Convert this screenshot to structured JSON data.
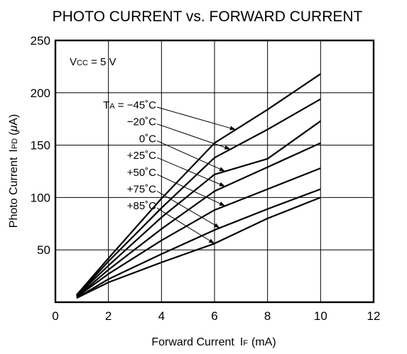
{
  "chart_data": {
    "type": "line",
    "title": "PHOTO CURRENT vs. FORWARD CURRENT",
    "xlabel": "Forward Current",
    "xlabel_symbol": "I",
    "xlabel_sub": "F",
    "xlabel_unit": "(mA)",
    "ylabel": "Photo Current",
    "ylabel_symbol": "I",
    "ylabel_sub": "PD",
    "ylabel_unit_open": "(",
    "ylabel_unit_mu": "μ",
    "ylabel_unit_rest": "A)",
    "xlim": [
      0,
      12
    ],
    "ylim": [
      0,
      250
    ],
    "xticks": [
      0,
      2,
      4,
      6,
      8,
      10,
      12
    ],
    "yticks": [
      50,
      100,
      150,
      200,
      250
    ],
    "xtick_labels": [
      "0",
      "2",
      "4",
      "6",
      "8",
      "10",
      "12"
    ],
    "ytick_labels": [
      "50",
      "100",
      "150",
      "200",
      "250"
    ],
    "grid": true,
    "annotation": {
      "symbol": "V",
      "sub": "CC",
      "text": " = 5 V"
    },
    "temp_prefix_symbol": "T",
    "temp_prefix_sub": "A",
    "temp_prefix_eq": " = ",
    "series": [
      {
        "name": "−45˚C",
        "x": [
          0.8,
          2,
          4,
          6,
          8,
          10
        ],
        "y": [
          7,
          42,
          99,
          152,
          184,
          218
        ]
      },
      {
        "name": "−20˚C",
        "x": [
          0.8,
          2,
          4,
          6,
          8,
          10
        ],
        "y": [
          6,
          39,
          90,
          138,
          165,
          194
        ]
      },
      {
        "name": "0˚C",
        "x": [
          0.8,
          2,
          4,
          6,
          8,
          10
        ],
        "y": [
          6,
          35,
          81,
          122,
          137,
          173
        ]
      },
      {
        "name": "+25˚C",
        "x": [
          0.8,
          2,
          4,
          6,
          8,
          10
        ],
        "y": [
          5,
          31,
          70,
          106,
          129,
          152
        ]
      },
      {
        "name": "+50˚C",
        "x": [
          0.8,
          2,
          4,
          6,
          8,
          10
        ],
        "y": [
          5,
          27,
          59,
          88,
          108,
          128
        ]
      },
      {
        "name": "+75˚C",
        "x": [
          0.8,
          2,
          4,
          6,
          8,
          10
        ],
        "y": [
          4,
          22,
          46,
          69,
          89,
          108
        ]
      },
      {
        "name": "+85˚C",
        "x": [
          0.8,
          2,
          4,
          6,
          8,
          10
        ],
        "y": [
          4,
          19,
          38,
          56,
          80,
          100
        ]
      }
    ]
  }
}
